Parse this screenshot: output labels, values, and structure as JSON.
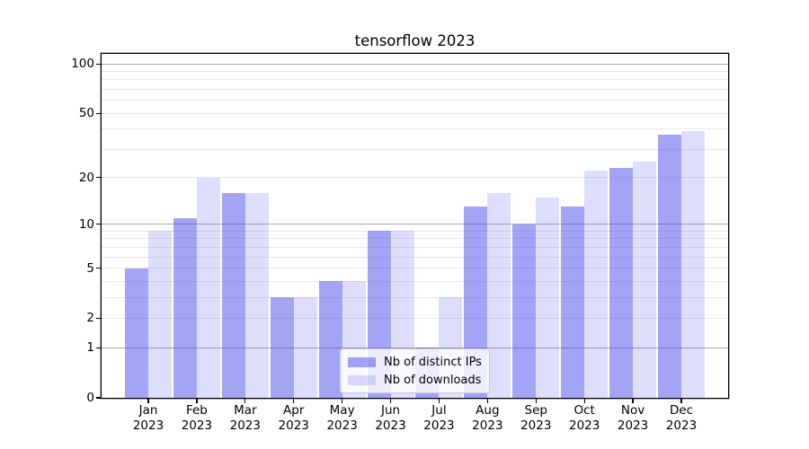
{
  "title": "tensorflow 2023",
  "chart_data": {
    "type": "bar",
    "title": "tensorflow 2023",
    "y_scale": "log1p",
    "ylim": [
      0,
      115
    ],
    "grid": "horizontal, major decades darker, minor light",
    "legend_position": "lower center inside plot",
    "categories": [
      "Jan 2023",
      "Feb 2023",
      "Mar 2023",
      "Apr 2023",
      "May 2023",
      "Jun 2023",
      "Jul 2023",
      "Aug 2023",
      "Sep 2023",
      "Oct 2023",
      "Nov 2023",
      "Dec 2023"
    ],
    "series": [
      {
        "key": "distinct-ips",
        "name": "Nb of distinct IPs",
        "color": "rgba(64,64,238,0.48)",
        "values": [
          5,
          11,
          16,
          3,
          4,
          9,
          1,
          13,
          10,
          13,
          23,
          37
        ]
      },
      {
        "key": "downloads",
        "name": "Nb of downloads",
        "color": "rgba(64,64,238,0.18)",
        "values": [
          9,
          20,
          16,
          3,
          4,
          9,
          3,
          16,
          15,
          22,
          25,
          39
        ]
      }
    ],
    "yticks": [
      0,
      1,
      2,
      5,
      10,
      20,
      50,
      100
    ],
    "grid_decades": [
      1,
      10,
      100
    ],
    "grid_minor": [
      2,
      3,
      4,
      5,
      6,
      7,
      8,
      9,
      20,
      30,
      40,
      50,
      60,
      70,
      80,
      90
    ]
  },
  "colors": {
    "bar_dark": "rgba(64,64,238,0.48)",
    "bar_light": "rgba(64,64,238,0.18)",
    "grid_major": "#ababab",
    "grid_minor": "#e9e9e9",
    "axis": "#000000",
    "legend_border": "#cccccc"
  }
}
